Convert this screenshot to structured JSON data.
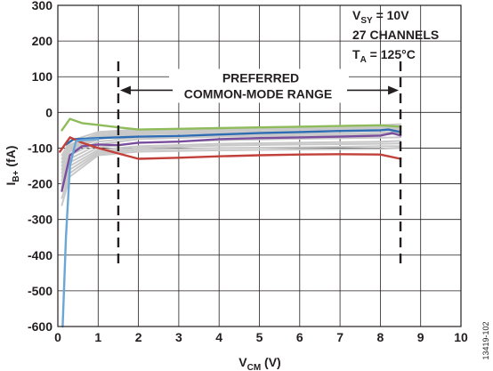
{
  "chart_data": {
    "type": "line",
    "xlabel": {
      "main": "V",
      "sub": "CM",
      "unit": " (V)"
    },
    "ylabel": {
      "main": "I",
      "sub": "B+",
      "unit": " (fA)"
    },
    "xlim": [
      0,
      10
    ],
    "ylim": [
      -600,
      300
    ],
    "xticks": [
      "0",
      "1",
      "2",
      "3",
      "4",
      "5",
      "6",
      "7",
      "8",
      "9",
      "10"
    ],
    "yticks": [
      "300",
      "200",
      "100",
      "0",
      "-100",
      "-200",
      "-300",
      "-400",
      "-500",
      "-600"
    ],
    "grid": true,
    "conditions": [
      {
        "main": "V",
        "sub": "SY",
        "rest": " = 10V"
      },
      {
        "main": "27 CHANNELS",
        "sub": "",
        "rest": ""
      },
      {
        "main": "T",
        "sub": "A",
        "rest": " = 125°C"
      }
    ],
    "range_annotation": {
      "line1": "PREFERRED",
      "line2": "COMMON-MODE RANGE",
      "x_start": 1.5,
      "x_end": 8.5
    },
    "figure_id": "13419-102",
    "colors": {
      "green": "#8fbc5a",
      "blue": "#2e6db4",
      "purple": "#7a4e9c",
      "red": "#c2403a",
      "lightblue": "#6aa6d6",
      "gray": "#c8c8c8"
    },
    "series": [
      {
        "color": "green",
        "x": [
          0.1,
          0.3,
          0.6,
          1.0,
          1.5,
          2.0,
          3.0,
          4.0,
          5.0,
          6.0,
          7.0,
          8.0,
          8.5
        ],
        "y": [
          -50,
          -18,
          -30,
          -35,
          -42,
          -48,
          -46,
          -44,
          -42,
          -40,
          -38,
          -36,
          -40
        ]
      },
      {
        "color": "blue",
        "x": [
          0.2,
          0.4,
          1.0,
          1.5,
          2.0,
          3.0,
          4.0,
          5.0,
          6.0,
          7.0,
          8.0,
          8.2,
          8.5
        ],
        "y": [
          -90,
          -75,
          -72,
          -70,
          -68,
          -66,
          -62,
          -58,
          -55,
          -52,
          -50,
          -48,
          -55
        ]
      },
      {
        "color": "purple",
        "x": [
          0.1,
          0.3,
          0.6,
          1.0,
          1.5,
          2.0,
          3.0,
          4.0,
          5.0,
          6.0,
          7.0,
          8.0,
          8.3,
          8.5
        ],
        "y": [
          -220,
          -120,
          -95,
          -90,
          -92,
          -85,
          -82,
          -75,
          -72,
          -70,
          -68,
          -65,
          -58,
          -65
        ]
      },
      {
        "color": "red",
        "x": [
          0.05,
          0.3,
          0.6,
          1.0,
          1.5,
          2.0,
          3.0,
          4.0,
          5.0,
          6.0,
          7.0,
          8.0,
          8.5
        ],
        "y": [
          -110,
          -70,
          -85,
          -100,
          -115,
          -130,
          -127,
          -123,
          -120,
          -118,
          -117,
          -118,
          -130
        ]
      },
      {
        "color": "lightblue",
        "x": [
          0.12,
          0.2,
          0.3,
          0.45,
          0.6,
          1.0
        ],
        "y": [
          -600,
          -350,
          -150,
          -80,
          -78,
          -75
        ]
      },
      {
        "color": "gray",
        "x": [
          0.1,
          0.3,
          1.0,
          2.0,
          4.0,
          6.0,
          8.0,
          8.5
        ],
        "y": [
          -170,
          -110,
          -75,
          -60,
          -55,
          -52,
          -48,
          -45
        ]
      },
      {
        "color": "gray",
        "x": [
          0.1,
          0.3,
          1.0,
          2.0,
          4.0,
          6.0,
          8.0,
          8.5
        ],
        "y": [
          -190,
          -130,
          -90,
          -75,
          -68,
          -65,
          -62,
          -60
        ]
      },
      {
        "color": "gray",
        "x": [
          0.1,
          0.3,
          1.0,
          2.0,
          4.0,
          6.0,
          8.0,
          8.5
        ],
        "y": [
          -150,
          -100,
          -68,
          -58,
          -50,
          -46,
          -44,
          -42
        ]
      },
      {
        "color": "gray",
        "x": [
          0.1,
          0.3,
          1.0,
          2.0,
          4.0,
          6.0,
          8.0,
          8.5
        ],
        "y": [
          -210,
          -150,
          -105,
          -95,
          -88,
          -85,
          -82,
          -80
        ]
      },
      {
        "color": "gray",
        "x": [
          0.1,
          0.3,
          1.0,
          2.0,
          4.0,
          6.0,
          8.0,
          8.5
        ],
        "y": [
          -130,
          -90,
          -60,
          -52,
          -47,
          -43,
          -40,
          -38
        ]
      },
      {
        "color": "gray",
        "x": [
          0.1,
          0.3,
          1.0,
          2.0,
          4.0,
          6.0,
          8.0,
          8.5
        ],
        "y": [
          -240,
          -170,
          -115,
          -105,
          -100,
          -98,
          -95,
          -95
        ]
      },
      {
        "color": "gray",
        "x": [
          0.1,
          0.3,
          1.0,
          2.0,
          4.0,
          6.0,
          8.0,
          8.5
        ],
        "y": [
          -180,
          -120,
          -82,
          -70,
          -64,
          -60,
          -57,
          -55
        ]
      },
      {
        "color": "gray",
        "x": [
          0.1,
          0.3,
          1.0,
          2.0,
          4.0,
          6.0,
          8.0,
          8.5
        ],
        "y": [
          -120,
          -80,
          -55,
          -48,
          -44,
          -40,
          -36,
          -33
        ]
      },
      {
        "color": "gray",
        "x": [
          0.1,
          0.3,
          1.0,
          2.0,
          4.0,
          6.0,
          8.0,
          8.5
        ],
        "y": [
          -200,
          -140,
          -98,
          -85,
          -78,
          -74,
          -71,
          -70
        ]
      },
      {
        "color": "gray",
        "x": [
          0.1,
          0.3,
          1.0,
          2.0,
          4.0,
          6.0,
          8.0,
          8.5
        ],
        "y": [
          -160,
          -105,
          -72,
          -62,
          -57,
          -54,
          -51,
          -50
        ]
      },
      {
        "color": "gray",
        "x": [
          0.1,
          0.3,
          1.0,
          2.0,
          4.0,
          6.0,
          8.0,
          8.5
        ],
        "y": [
          -260,
          -180,
          -120,
          -110,
          -106,
          -104,
          -102,
          -100
        ]
      },
      {
        "color": "gray",
        "x": [
          0.1,
          0.3,
          1.0,
          2.0,
          4.0,
          6.0,
          8.0,
          8.5
        ],
        "y": [
          -140,
          -95,
          -65,
          -56,
          -50,
          -47,
          -45,
          -44
        ]
      },
      {
        "color": "gray",
        "x": [
          0.1,
          0.3,
          1.0,
          2.0,
          4.0,
          6.0,
          8.0,
          8.5
        ],
        "y": [
          -220,
          -160,
          -110,
          -100,
          -93,
          -90,
          -88,
          -87
        ]
      }
    ]
  }
}
